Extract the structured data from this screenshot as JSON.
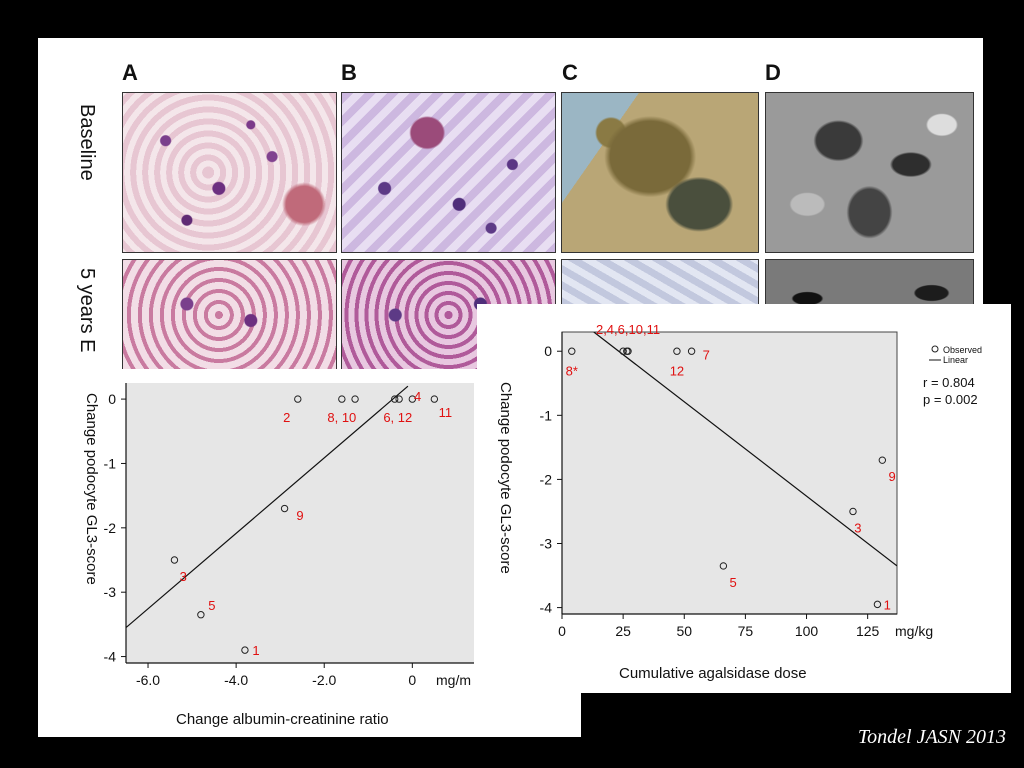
{
  "figure": {
    "panel_labels": [
      "A",
      "B",
      "C",
      "D"
    ],
    "row_labels": [
      "Baseline",
      "5 years E"
    ]
  },
  "citation": "Tondel  JASN 2013",
  "chart_data": [
    {
      "type": "scatter",
      "id": "albumin",
      "xlabel": "Change albumin-creatinine ratio",
      "ylabel": "Change podocyte GL3-score",
      "x_unit": "mg/m",
      "xlim": [
        -6.5,
        1.4
      ],
      "ylim": [
        -4.1,
        0.25
      ],
      "x_ticks": [
        -6.0,
        -4.0,
        -2.0,
        0
      ],
      "x_tick_labels": [
        "-6.0",
        "-4.0",
        "-2.0",
        "0"
      ],
      "y_ticks": [
        0,
        -1,
        -2,
        -3,
        -4
      ],
      "y_tick_labels": [
        "0",
        "-1",
        "-2",
        "-3",
        "-4"
      ],
      "points": [
        {
          "x": -2.6,
          "y": 0
        },
        {
          "x": -1.6,
          "y": 0
        },
        {
          "x": -1.3,
          "y": 0
        },
        {
          "x": -0.4,
          "y": 0
        },
        {
          "x": -0.3,
          "y": 0
        },
        {
          "x": 0,
          "y": 0
        },
        {
          "x": 0.5,
          "y": 0
        },
        {
          "x": -2.9,
          "y": -1.7
        },
        {
          "x": -5.4,
          "y": -2.5
        },
        {
          "x": -4.8,
          "y": -3.35
        },
        {
          "x": -3.8,
          "y": -3.9
        }
      ],
      "point_labels": [
        {
          "text": "2",
          "x": -2.85,
          "y": -0.28
        },
        {
          "text": "8, 10",
          "x": -1.6,
          "y": -0.28
        },
        {
          "text": "6, 12",
          "x": -0.33,
          "y": -0.28
        },
        {
          "text": "4",
          "x": 0.12,
          "y": 0.05
        },
        {
          "text": "11",
          "x": 0.75,
          "y": -0.2
        },
        {
          "text": "9",
          "x": -2.55,
          "y": -1.8
        },
        {
          "text": "3",
          "x": -5.2,
          "y": -2.75
        },
        {
          "text": "5",
          "x": -4.55,
          "y": -3.2
        },
        {
          "text": "1",
          "x": -3.55,
          "y": -3.9
        }
      ],
      "fit_line": [
        [
          -6.5,
          -3.55
        ],
        [
          -0.1,
          0.2
        ]
      ]
    },
    {
      "type": "scatter",
      "id": "agalsidase",
      "xlabel": "Cumulative agalsidase dose",
      "ylabel": "Change podocyte GL3-score",
      "x_unit": "mg/kg",
      "xlim": [
        0,
        137
      ],
      "ylim": [
        -4.1,
        0.3
      ],
      "x_ticks": [
        0,
        25,
        50,
        75,
        100,
        125
      ],
      "x_tick_labels": [
        "0",
        "25",
        "50",
        "75",
        "100",
        "125"
      ],
      "y_ticks": [
        0,
        -1,
        -2,
        -3,
        -4
      ],
      "y_tick_labels": [
        "0",
        "-1",
        "-2",
        "-3",
        "-4"
      ],
      "points": [
        {
          "x": 4,
          "y": 0
        },
        {
          "x": 25,
          "y": 0
        },
        {
          "x": 26.5,
          "y": 0
        },
        {
          "x": 27,
          "y": 0
        },
        {
          "x": 47,
          "y": 0
        },
        {
          "x": 53,
          "y": 0
        },
        {
          "x": 131,
          "y": -1.7
        },
        {
          "x": 119,
          "y": -2.5
        },
        {
          "x": 66,
          "y": -3.35
        },
        {
          "x": 129,
          "y": -3.95
        }
      ],
      "point_labels": [
        {
          "text": "2,4,6,10,11",
          "x": 27,
          "y": 0.35
        },
        {
          "text": "8*",
          "x": 4,
          "y": -0.3
        },
        {
          "text": "12",
          "x": 47,
          "y": -0.3
        },
        {
          "text": "7",
          "x": 59,
          "y": -0.05
        },
        {
          "text": "9",
          "x": 135,
          "y": -1.95
        },
        {
          "text": "3",
          "x": 121,
          "y": -2.75
        },
        {
          "text": "5",
          "x": 70,
          "y": -3.6
        },
        {
          "text": "1",
          "x": 133,
          "y": -3.95
        }
      ],
      "fit_line": [
        [
          13,
          0.3
        ],
        [
          137,
          -3.35
        ]
      ],
      "legend": {
        "observed": "Observed",
        "linear": "Linear"
      },
      "stats": {
        "r": "r = 0.804",
        "p": "p = 0.002"
      }
    }
  ]
}
